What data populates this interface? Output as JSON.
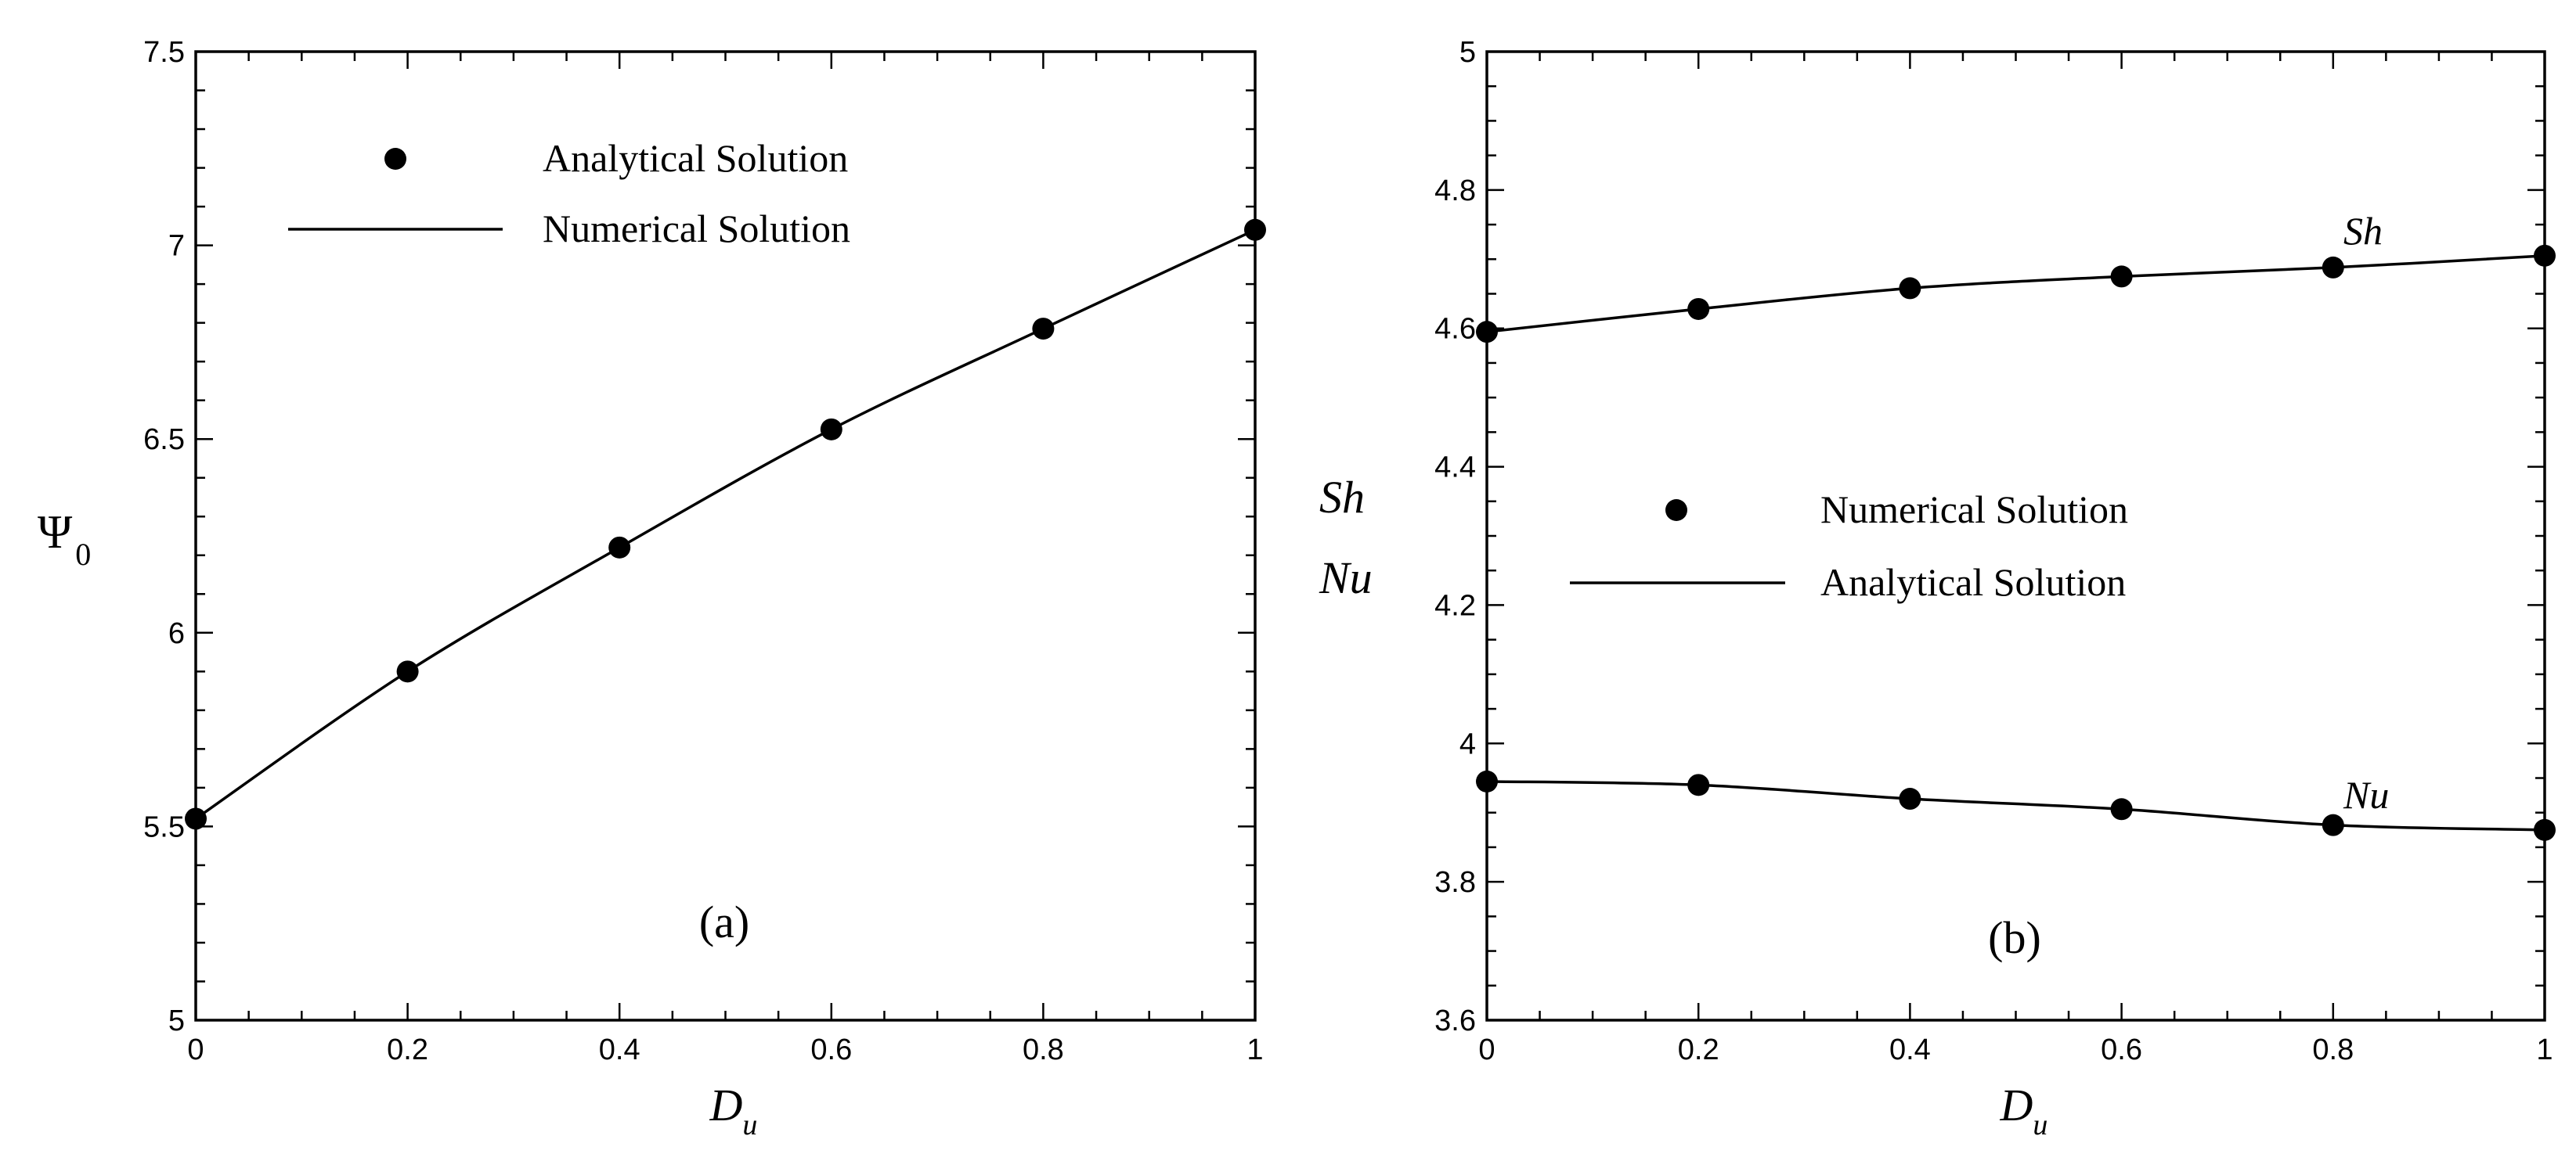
{
  "chart_data": [
    {
      "type": "line",
      "panel_label": "(a)",
      "xlabel": {
        "main": "D",
        "sub": "u"
      },
      "ylabel": {
        "main": "Ψ",
        "sub": "0"
      },
      "xlim": [
        0,
        1
      ],
      "ylim": [
        5,
        7.5
      ],
      "xticks": [
        "0",
        "0.2",
        "0.4",
        "0.6",
        "0.8",
        "1"
      ],
      "yticks": [
        "5",
        "5.5",
        "6",
        "6.5",
        "7",
        "7.5"
      ],
      "legend": {
        "placement": "top-left",
        "marker_label": "Analytical Solution",
        "line_label": "Numerical Solution"
      },
      "series": [
        {
          "x": [
            0,
            0.2,
            0.4,
            0.6,
            0.8,
            1
          ],
          "y": [
            5.52,
            5.9,
            6.22,
            6.525,
            6.785,
            7.04
          ]
        }
      ]
    },
    {
      "type": "line",
      "panel_label": "(b)",
      "xlabel": {
        "main": "D",
        "sub": "u"
      },
      "ylabel": {
        "line1": "Sh",
        "line2": "Nu"
      },
      "xlim": [
        0,
        1
      ],
      "ylim": [
        3.6,
        5
      ],
      "xticks": [
        "0",
        "0.2",
        "0.4",
        "0.6",
        "0.8",
        "1"
      ],
      "yticks": [
        "3.6",
        "3.8",
        "4",
        "4.2",
        "4.4",
        "4.6",
        "4.8",
        "5"
      ],
      "legend": {
        "placement": "center-left",
        "marker_label": "Numerical Solution",
        "line_label": "Analytical Solution"
      },
      "series": [
        {
          "name": "Sh",
          "x": [
            0,
            0.2,
            0.4,
            0.6,
            0.8,
            1
          ],
          "y": [
            4.595,
            4.628,
            4.658,
            4.675,
            4.688,
            4.705
          ]
        },
        {
          "name": "Nu",
          "x": [
            0,
            0.2,
            0.4,
            0.6,
            0.8,
            1
          ],
          "y": [
            3.945,
            3.94,
            3.92,
            3.905,
            3.882,
            3.875
          ]
        }
      ]
    }
  ]
}
